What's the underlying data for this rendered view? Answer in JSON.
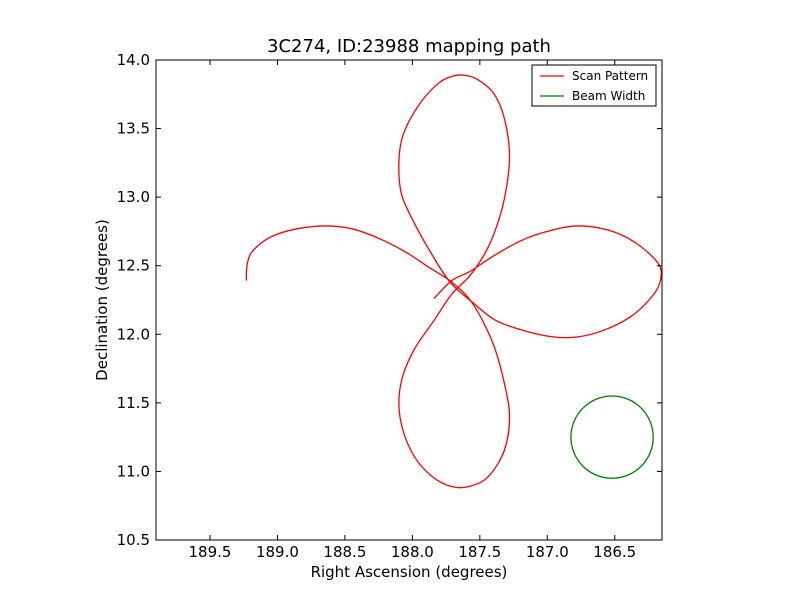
{
  "chart_data": {
    "type": "line",
    "title": "3C274, ID:23988 mapping path",
    "xlabel": "Right Ascension (degrees)",
    "ylabel": "Declination (degrees)",
    "xlim": [
      189.9,
      186.15
    ],
    "ylim": [
      10.5,
      14.0
    ],
    "x_inverted": true,
    "xticks": [
      "189.5",
      "189.0",
      "188.5",
      "188.0",
      "187.5",
      "187.0",
      "186.5"
    ],
    "xtick_values": [
      189.5,
      189.0,
      188.5,
      188.0,
      187.5,
      187.0,
      186.5
    ],
    "yticks": [
      "10.5",
      "11.0",
      "11.5",
      "12.0",
      "12.5",
      "13.0",
      "13.5",
      "14.0"
    ],
    "ytick_values": [
      10.5,
      11.0,
      11.5,
      12.0,
      12.5,
      13.0,
      13.5,
      14.0
    ],
    "grid": false,
    "legend_position": "top-right",
    "series": [
      {
        "name": "Scan Pattern",
        "color": "#ff0000",
        "kind": "path",
        "x": [
          189.23,
          189.23,
          189.22,
          189.19,
          189.1,
          189.0,
          188.85,
          188.65,
          188.45,
          188.25,
          188.05,
          187.88,
          187.72,
          187.58,
          187.48,
          187.39,
          187.32,
          187.28,
          187.32,
          187.44,
          187.58,
          187.71,
          187.85,
          187.98,
          188.07,
          188.1,
          188.07,
          187.98,
          187.84,
          187.71,
          187.58,
          187.48,
          187.4,
          187.32,
          187.28,
          187.32,
          187.4,
          187.52,
          187.62,
          187.71,
          187.82,
          187.96,
          188.07,
          188.1,
          188.08,
          187.98,
          187.86,
          187.72,
          187.55,
          187.38,
          187.15,
          186.95,
          186.78,
          186.58,
          186.38,
          186.22,
          186.16,
          186.18,
          186.35,
          186.55,
          186.78,
          187.0,
          187.2,
          187.4,
          187.57,
          187.71,
          187.84
        ],
        "y": [
          12.39,
          12.45,
          12.53,
          12.6,
          12.68,
          12.73,
          12.77,
          12.79,
          12.77,
          12.7,
          12.6,
          12.49,
          12.39,
          12.26,
          12.1,
          11.9,
          11.65,
          11.4,
          11.15,
          10.96,
          10.89,
          10.89,
          10.96,
          11.1,
          11.3,
          11.5,
          11.7,
          11.9,
          12.1,
          12.29,
          12.42,
          12.56,
          12.72,
          12.98,
          13.3,
          13.58,
          13.76,
          13.86,
          13.89,
          13.88,
          13.82,
          13.66,
          13.45,
          13.25,
          13.02,
          12.8,
          12.59,
          12.38,
          12.23,
          12.1,
          12.02,
          11.98,
          11.98,
          12.03,
          12.13,
          12.28,
          12.4,
          12.52,
          12.67,
          12.76,
          12.79,
          12.75,
          12.68,
          12.57,
          12.46,
          12.39,
          12.26
        ]
      },
      {
        "name": "Beam Width",
        "color": "#008000",
        "kind": "circle",
        "center": [
          186.52,
          11.25
        ],
        "radius_deg": 0.3
      }
    ],
    "legend": [
      {
        "label": "Scan Pattern",
        "color": "#ff0000"
      },
      {
        "label": "Beam Width",
        "color": "#008000"
      }
    ]
  }
}
